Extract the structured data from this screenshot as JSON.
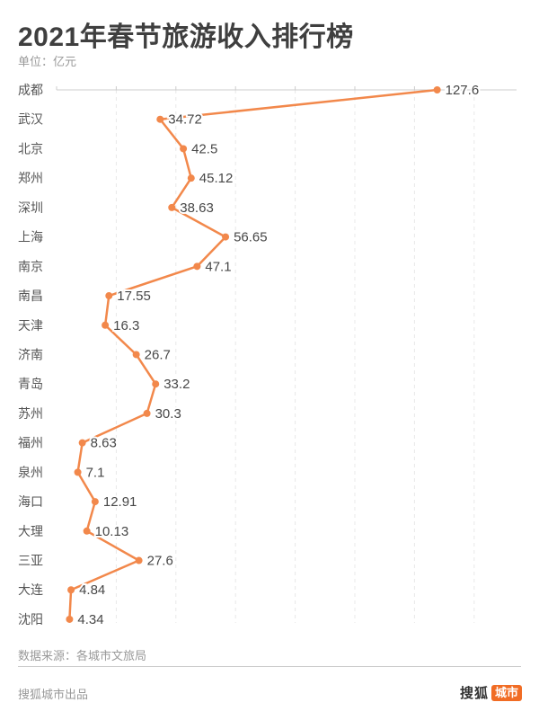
{
  "header": {
    "title": "2021年春节旅游收入排行榜",
    "subtitle": "单位：亿元"
  },
  "footer": {
    "source": "数据来源：各城市文旅局",
    "produced_by": "搜狐城市出品",
    "logo": {
      "brand": "搜狐",
      "badge": "城市"
    }
  },
  "colors": {
    "accent": "#F2884B",
    "logo_badge": "#F16C24",
    "axis": "#CCCCCC",
    "grid": "#E8E8E8",
    "title_text": "#3F3F3F",
    "label_text": "#555555",
    "value_text": "#474747",
    "muted_text": "#999999"
  },
  "chart_data": {
    "type": "line",
    "title": "2021年春节旅游收入排行榜",
    "unit": "亿元",
    "orientation": "categories-on-y-axis, values-on-top-x-axis",
    "legend": "none",
    "grid": "dashed vertical gridlines",
    "categories": [
      "成都",
      "武汉",
      "北京",
      "郑州",
      "深圳",
      "上海",
      "南京",
      "南昌",
      "天津",
      "济南",
      "青岛",
      "苏州",
      "福州",
      "泉州",
      "海口",
      "大理",
      "三亚",
      "大连",
      "沈阳"
    ],
    "values": [
      127.6,
      34.72,
      42.5,
      45.12,
      38.63,
      56.65,
      47.1,
      17.55,
      16.3,
      26.7,
      33.2,
      30.3,
      8.63,
      7.1,
      12.91,
      10.13,
      27.6,
      4.84,
      4.34
    ],
    "value_labels": [
      "127.6",
      "34.72",
      "42.5",
      "45.12",
      "38.63",
      "56.65",
      "47.1",
      "17.55",
      "16.3",
      "26.7",
      "33.2",
      "30.3",
      "8.63",
      "7.1",
      "12.91",
      "10.13",
      "27.6",
      "4.84",
      "4.34"
    ],
    "x_axis": {
      "position": "top",
      "min": 0,
      "max": 154,
      "grid_interval": 20,
      "gridline_values": [
        20,
        40,
        60,
        80,
        100,
        120,
        140
      ]
    },
    "marker": "dot"
  }
}
